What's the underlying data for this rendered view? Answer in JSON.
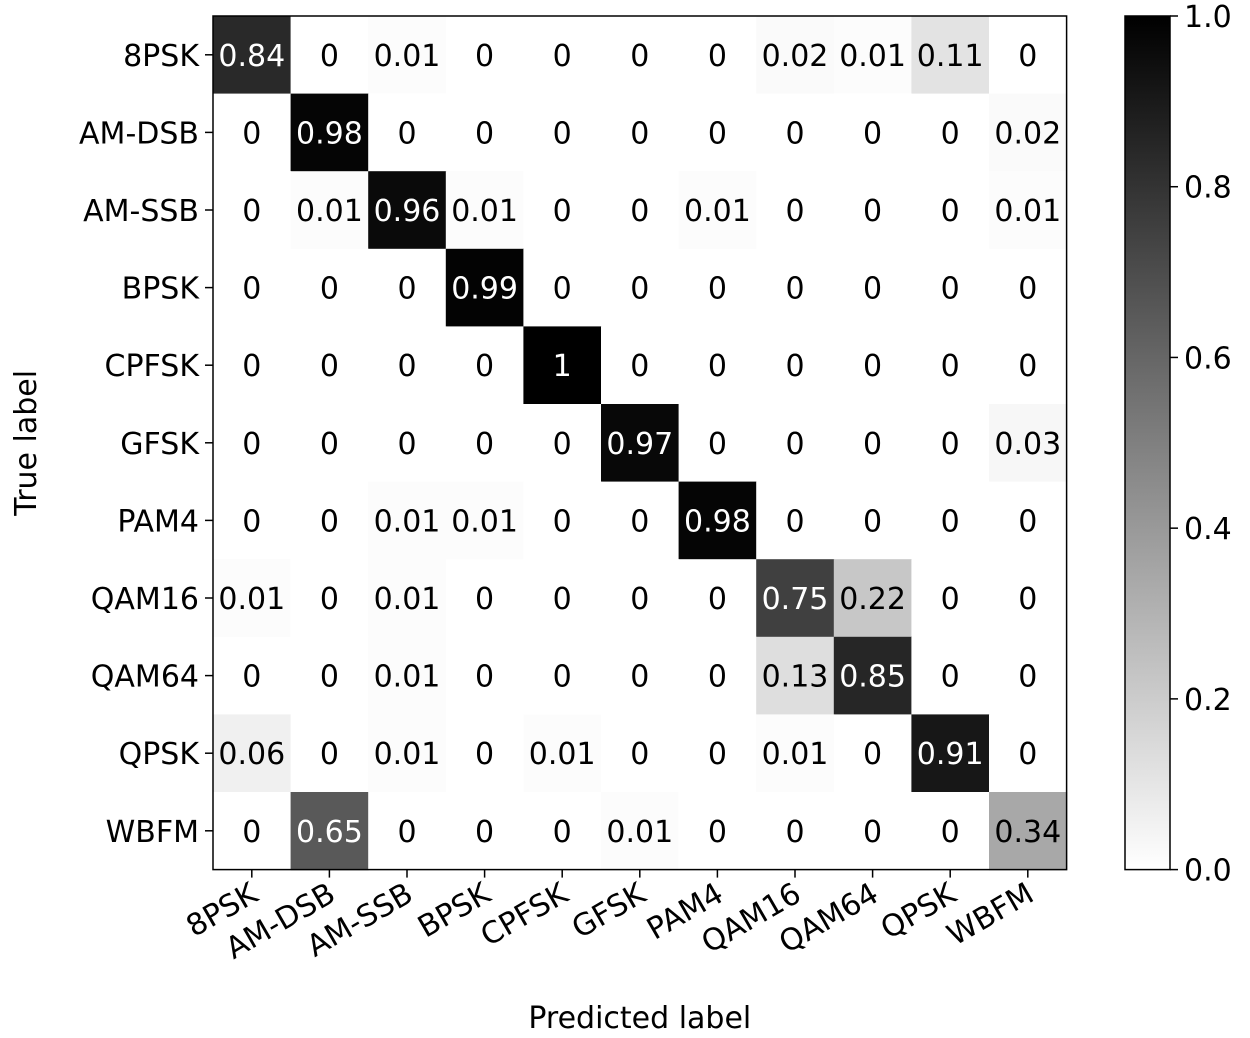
{
  "chart_data": {
    "type": "heatmap",
    "xlabel": "Predicted label",
    "ylabel": "True label",
    "x_categories": [
      "8PSK",
      "AM-DSB",
      "AM-SSB",
      "BPSK",
      "CPFSK",
      "GFSK",
      "PAM4",
      "QAM16",
      "QAM64",
      "QPSK",
      "WBFM"
    ],
    "y_categories": [
      "8PSK",
      "AM-DSB",
      "AM-SSB",
      "BPSK",
      "CPFSK",
      "GFSK",
      "PAM4",
      "QAM16",
      "QAM64",
      "QPSK",
      "WBFM"
    ],
    "values": [
      [
        0.84,
        0.0,
        0.01,
        0.0,
        0.0,
        0.0,
        0.0,
        0.02,
        0.01,
        0.11,
        0.0
      ],
      [
        0.0,
        0.98,
        0.0,
        0.0,
        0.0,
        0.0,
        0.0,
        0.0,
        0.0,
        0.0,
        0.02
      ],
      [
        0.0,
        0.01,
        0.96,
        0.01,
        0.0,
        0.0,
        0.01,
        0.0,
        0.0,
        0.0,
        0.01
      ],
      [
        0.0,
        0.0,
        0.0,
        0.99,
        0.0,
        0.0,
        0.0,
        0.0,
        0.0,
        0.0,
        0.0
      ],
      [
        0.0,
        0.0,
        0.0,
        0.0,
        1.0,
        0.0,
        0.0,
        0.0,
        0.0,
        0.0,
        0.0
      ],
      [
        0.0,
        0.0,
        0.0,
        0.0,
        0.0,
        0.97,
        0.0,
        0.0,
        0.0,
        0.0,
        0.03
      ],
      [
        0.0,
        0.0,
        0.01,
        0.01,
        0.0,
        0.0,
        0.98,
        0.0,
        0.0,
        0.0,
        0.0
      ],
      [
        0.01,
        0.0,
        0.01,
        0.0,
        0.0,
        0.0,
        0.0,
        0.75,
        0.22,
        0.0,
        0.0
      ],
      [
        0.0,
        0.0,
        0.01,
        0.0,
        0.0,
        0.0,
        0.0,
        0.13,
        0.85,
        0.0,
        0.0
      ],
      [
        0.06,
        0.0,
        0.01,
        0.0,
        0.01,
        0.0,
        0.0,
        0.01,
        0.0,
        0.91,
        0.0
      ],
      [
        0.0,
        0.65,
        0.0,
        0.0,
        0.0,
        0.01,
        0.0,
        0.0,
        0.0,
        0.0,
        0.34
      ]
    ],
    "colormap": "Greys",
    "colorbar": {
      "range": [
        0.0,
        1.0
      ],
      "ticks": [
        "0.0",
        "0.2",
        "0.4",
        "0.6",
        "0.8",
        "1.0"
      ]
    },
    "text_color_light": "#ffffff",
    "text_color_dark": "#000000"
  }
}
